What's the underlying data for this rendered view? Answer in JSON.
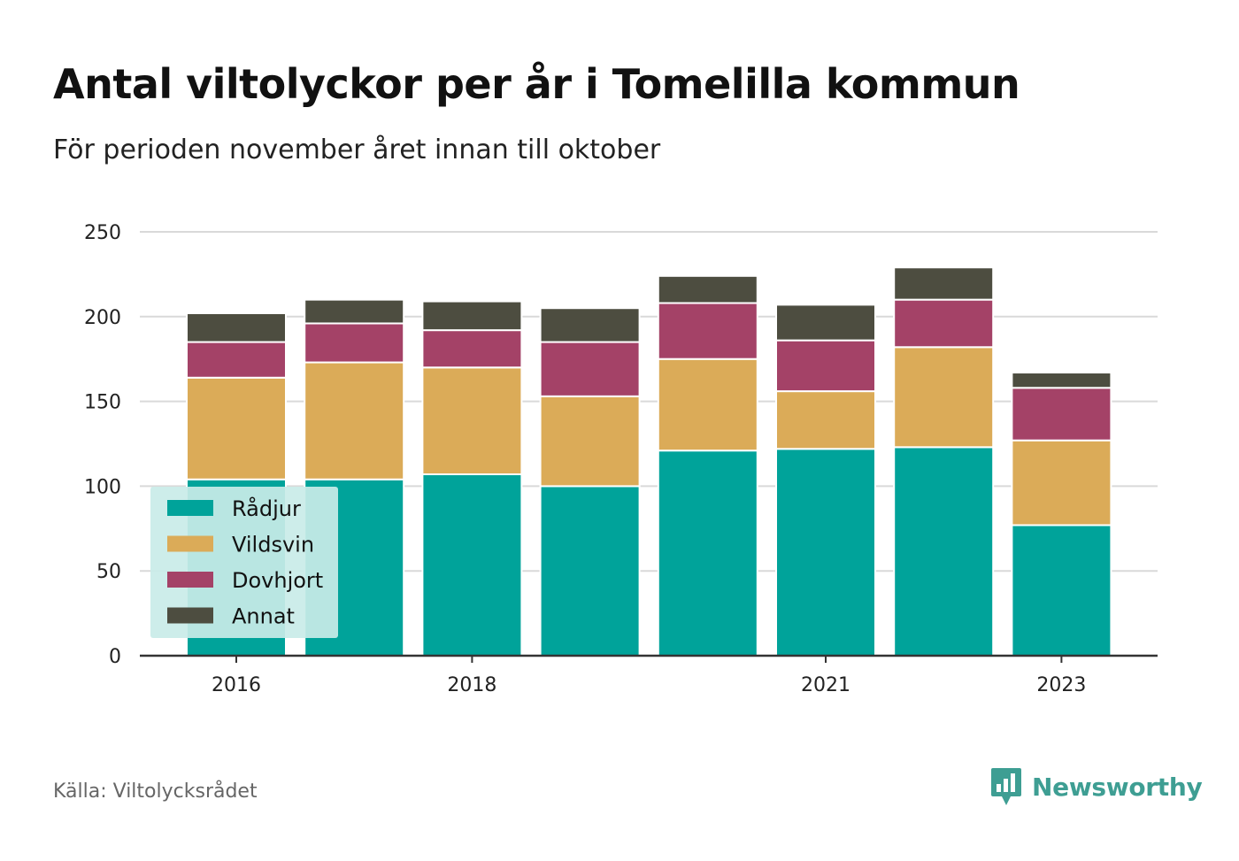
{
  "header": {
    "title": "Antal viltolyckor per år i Tomelilla kommun",
    "subtitle": "För perioden november året innan till oktober"
  },
  "footer": {
    "source": "Källa: Viltolycksrådet",
    "brand": "Newsworthy"
  },
  "icons": {
    "brand": "newsworthy-logo-icon"
  },
  "colors": {
    "background": "#ffffff",
    "grid": "#d9d9d9",
    "axis": "#333333",
    "legend_bg": "#c9ebe8",
    "brand": "#3e9e93"
  },
  "chart_data": {
    "type": "bar",
    "stacked": true,
    "title": "Antal viltolyckor per år i Tomelilla kommun",
    "subtitle": "För perioden november året innan till oktober",
    "xlabel": "",
    "ylabel": "",
    "categories": [
      "2016",
      "2017",
      "2018",
      "2019",
      "2020",
      "2021",
      "2022",
      "2023"
    ],
    "x_tick_labels": [
      "2016",
      "2018",
      "2021",
      "2023"
    ],
    "y_ticks": [
      0,
      50,
      100,
      150,
      200,
      250
    ],
    "ylim": [
      0,
      250
    ],
    "grid": true,
    "legend_position": "bottom-left",
    "series": [
      {
        "name": "Rådjur",
        "color": "#00a39a",
        "values": [
          104,
          104,
          107,
          100,
          121,
          122,
          123,
          77
        ]
      },
      {
        "name": "Vildsvin",
        "color": "#dbab58",
        "values": [
          60,
          69,
          63,
          53,
          54,
          34,
          59,
          50
        ]
      },
      {
        "name": "Dovhjort",
        "color": "#a44267",
        "values": [
          21,
          23,
          22,
          32,
          33,
          30,
          28,
          31
        ]
      },
      {
        "name": "Annat",
        "color": "#4d4d40",
        "values": [
          17,
          14,
          17,
          20,
          16,
          21,
          19,
          9
        ]
      }
    ]
  }
}
